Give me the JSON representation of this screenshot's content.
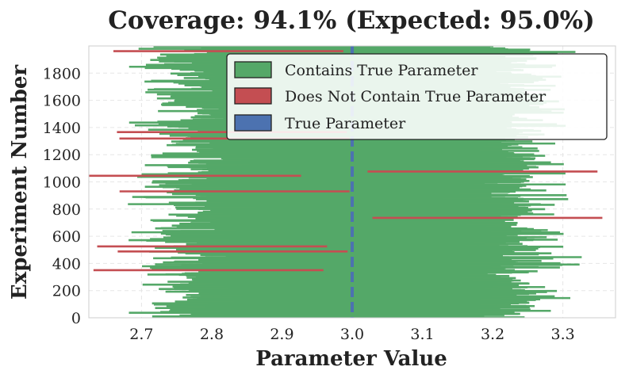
{
  "chart_data": {
    "type": "interval",
    "title": "Coverage: 94.1% (Expected: 95.0%)",
    "xlabel": "Parameter Value",
    "ylabel": "Experiment Number",
    "xlim": [
      2.625,
      3.375
    ],
    "ylim": [
      0,
      2000
    ],
    "x_ticks": [
      "2.7",
      "2.8",
      "2.9",
      "3.0",
      "3.1",
      "3.2",
      "3.3"
    ],
    "x_tick_values": [
      2.7,
      2.8,
      2.9,
      3.0,
      3.1,
      3.2,
      3.3
    ],
    "y_ticks": [
      "0",
      "200",
      "400",
      "600",
      "800",
      "1000",
      "1200",
      "1400",
      "1600",
      "1800"
    ],
    "y_tick_values": [
      0,
      200,
      400,
      600,
      800,
      1000,
      1200,
      1400,
      1600,
      1800
    ],
    "true_parameter": 3.0,
    "n_experiments": 2000,
    "coverage_percent": 94.1,
    "expected_percent": 95.0,
    "grid": true,
    "legend_position": "top-right",
    "legend": [
      {
        "label": "Contains True Parameter",
        "color": "#55a868"
      },
      {
        "label": "Does Not Contain True Parameter",
        "color": "#c44e52"
      },
      {
        "label": "True Parameter",
        "color": "#4c72b0"
      }
    ],
    "colors": {
      "contains": "#55a868",
      "misses": "#c44e52",
      "true_line": "#4c72b0"
    }
  }
}
